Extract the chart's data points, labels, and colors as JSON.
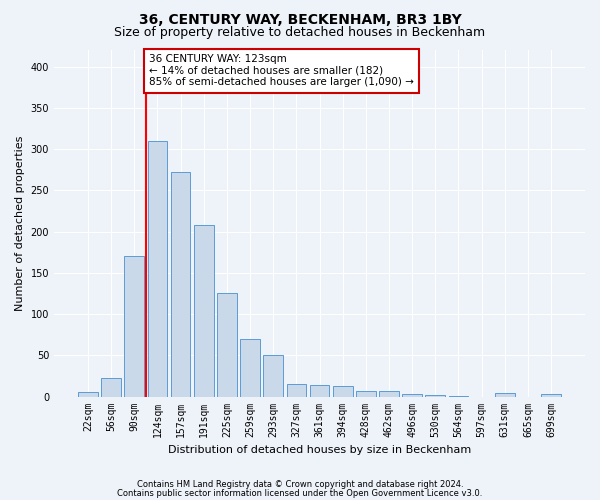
{
  "title": "36, CENTURY WAY, BECKENHAM, BR3 1BY",
  "subtitle": "Size of property relative to detached houses in Beckenham",
  "xlabel": "Distribution of detached houses by size in Beckenham",
  "ylabel": "Number of detached properties",
  "bar_labels": [
    "22sqm",
    "56sqm",
    "90sqm",
    "124sqm",
    "157sqm",
    "191sqm",
    "225sqm",
    "259sqm",
    "293sqm",
    "327sqm",
    "361sqm",
    "394sqm",
    "428sqm",
    "462sqm",
    "496sqm",
    "530sqm",
    "564sqm",
    "597sqm",
    "631sqm",
    "665sqm",
    "699sqm"
  ],
  "bar_values": [
    5,
    22,
    170,
    310,
    272,
    208,
    125,
    70,
    50,
    15,
    14,
    13,
    7,
    7,
    3,
    2,
    1,
    0,
    4,
    0,
    3
  ],
  "bar_color": "#c9d9ea",
  "bar_edgecolor": "#5b9bd5",
  "red_line_index": 3,
  "annotation_text": "36 CENTURY WAY: 123sqm\n← 14% of detached houses are smaller (182)\n85% of semi-detached houses are larger (1,090) →",
  "annotation_box_color": "#ffffff",
  "annotation_box_edgecolor": "#cc0000",
  "ylim": [
    0,
    420
  ],
  "yticks": [
    0,
    50,
    100,
    150,
    200,
    250,
    300,
    350,
    400
  ],
  "footer1": "Contains HM Land Registry data © Crown copyright and database right 2024.",
  "footer2": "Contains public sector information licensed under the Open Government Licence v3.0.",
  "background_color": "#eef2f9",
  "grid_color": "#ffffff",
  "title_fontsize": 10,
  "subtitle_fontsize": 9,
  "xlabel_fontsize": 8,
  "ylabel_fontsize": 8,
  "tick_fontsize": 7,
  "annotation_fontsize": 7.5,
  "footer_fontsize": 6,
  "bar_width": 0.85
}
